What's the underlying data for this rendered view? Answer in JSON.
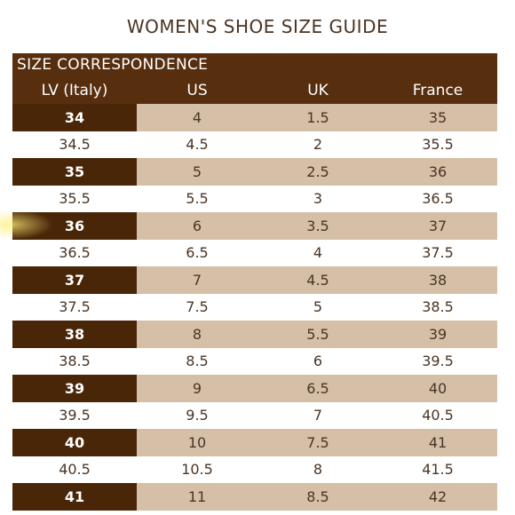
{
  "title": "WOMEN'S SHOE SIZE GUIDE",
  "section_label": "SIZE CORRESPONDENCE",
  "columns": [
    "LV (Italy)",
    "US",
    "UK",
    "France"
  ],
  "rows": [
    {
      "lv": "34",
      "us": "4",
      "uk": "1.5",
      "fr": "35",
      "style": "dark"
    },
    {
      "lv": "34.5",
      "us": "4.5",
      "uk": "2",
      "fr": "35.5",
      "style": "light"
    },
    {
      "lv": "35",
      "us": "5",
      "uk": "2.5",
      "fr": "36",
      "style": "dark"
    },
    {
      "lv": "35.5",
      "us": "5.5",
      "uk": "3",
      "fr": "36.5",
      "style": "light"
    },
    {
      "lv": "36",
      "us": "6",
      "uk": "3.5",
      "fr": "37",
      "style": "dark"
    },
    {
      "lv": "36.5",
      "us": "6.5",
      "uk": "4",
      "fr": "37.5",
      "style": "light"
    },
    {
      "lv": "37",
      "us": "7",
      "uk": "4.5",
      "fr": "38",
      "style": "dark"
    },
    {
      "lv": "37.5",
      "us": "7.5",
      "uk": "5",
      "fr": "38.5",
      "style": "light"
    },
    {
      "lv": "38",
      "us": "8",
      "uk": "5.5",
      "fr": "39",
      "style": "dark"
    },
    {
      "lv": "38.5",
      "us": "8.5",
      "uk": "6",
      "fr": "39.5",
      "style": "light"
    },
    {
      "lv": "39",
      "us": "9",
      "uk": "6.5",
      "fr": "40",
      "style": "dark"
    },
    {
      "lv": "39.5",
      "us": "9.5",
      "uk": "7",
      "fr": "40.5",
      "style": "light"
    },
    {
      "lv": "40",
      "us": "10",
      "uk": "7.5",
      "fr": "41",
      "style": "dark"
    },
    {
      "lv": "40.5",
      "us": "10.5",
      "uk": "8",
      "fr": "41.5",
      "style": "light"
    },
    {
      "lv": "41",
      "us": "11",
      "uk": "8.5",
      "fr": "42",
      "style": "dark"
    }
  ],
  "colors": {
    "header_brown": "#572f0f",
    "dark_cell_brown": "#4a2609",
    "tan_fill": "#d5bfa7",
    "text_brown": "#4a3424"
  }
}
